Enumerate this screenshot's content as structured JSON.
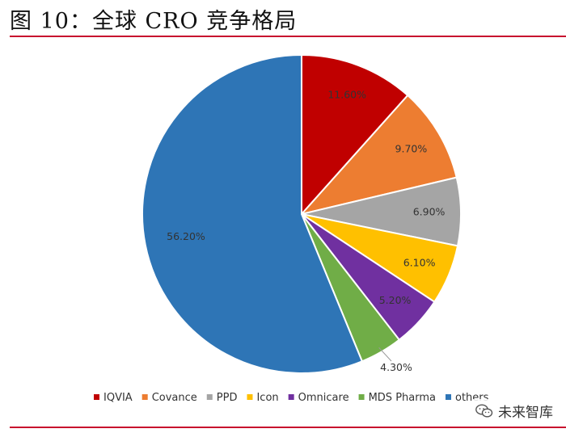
{
  "header": {
    "title": "图 10：全球 CRO 竞争格局"
  },
  "watermark": {
    "text": "未来智库",
    "icon": "wechat-icon"
  },
  "chart_data": {
    "type": "pie",
    "title": "",
    "slices": [
      {
        "name": "IQVIA",
        "value": 11.6,
        "label": "11.60%",
        "color": "#c00000"
      },
      {
        "name": "Covance",
        "value": 9.7,
        "label": "9.70%",
        "color": "#ed7d31"
      },
      {
        "name": "PPD",
        "value": 6.9,
        "label": "6.90%",
        "color": "#a5a5a5"
      },
      {
        "name": "Icon",
        "value": 6.1,
        "label": "6.10%",
        "color": "#ffc000"
      },
      {
        "name": "Omnicare",
        "value": 5.2,
        "label": "5.20%",
        "color": "#7030a0"
      },
      {
        "name": "MDS Pharma",
        "value": 4.3,
        "label": "4.30%",
        "color": "#70ad47"
      },
      {
        "name": "others",
        "value": 56.2,
        "label": "56.20%",
        "color": "#2e75b6"
      }
    ],
    "start_angle": "12 o'clock",
    "direction": "clockwise",
    "legend_position": "bottom"
  }
}
